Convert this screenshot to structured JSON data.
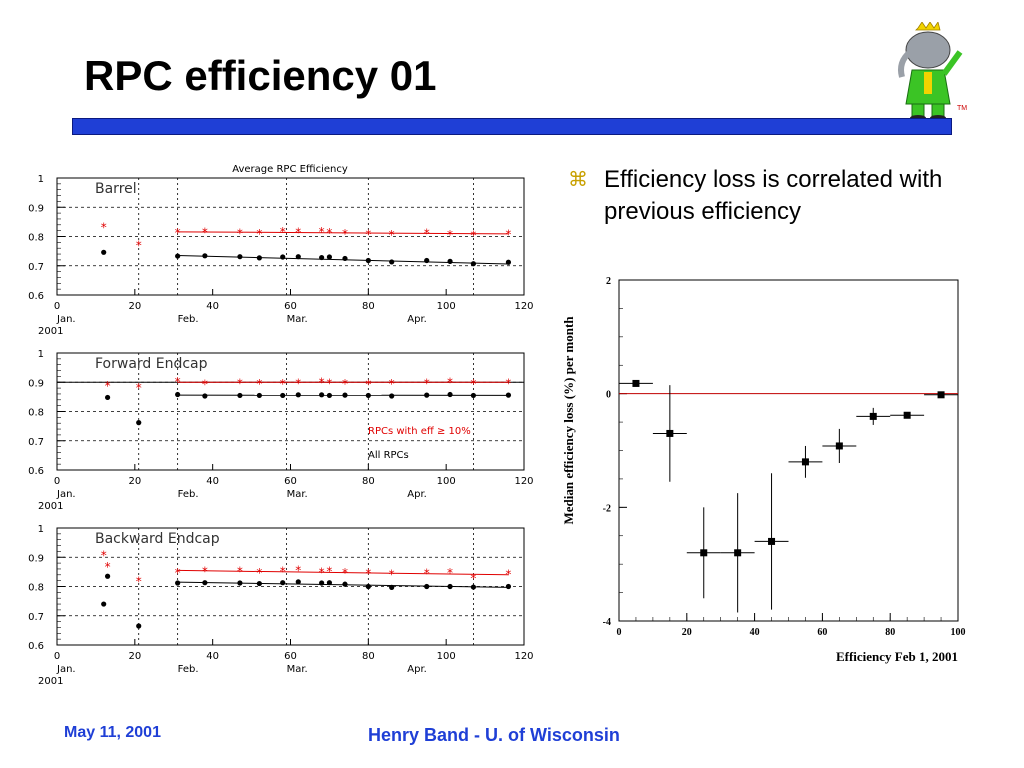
{
  "slide": {
    "title": "RPC efficiency 01",
    "bullet_symbol": "⌘",
    "bullet_text": "Efficiency loss is correlated with previous efficiency",
    "tm": "TM",
    "footer_date": "May 11, 2001",
    "footer_author": "Henry Band -  U. of Wisconsin",
    "colors": {
      "title_bar": "#1f3fd6",
      "footer_text": "#1f3fd6",
      "red_series": "#e00000",
      "black_series": "#000000"
    }
  },
  "chart_data": [
    {
      "type": "scatter",
      "panel": "top",
      "title": "Average RPC Efficiency",
      "label": "Barrel",
      "xlim": [
        0,
        120
      ],
      "ylim": [
        0.6,
        1.0
      ],
      "xticks": [
        0,
        20,
        40,
        60,
        80,
        100,
        120
      ],
      "yticks": [
        "0.6",
        "0.7",
        "0.8",
        "0.9",
        "1"
      ],
      "month_labels": [
        {
          "x": 0,
          "text": "Jan."
        },
        {
          "x": 31,
          "text": "Feb."
        },
        {
          "x": 59,
          "text": "Mar."
        },
        {
          "x": 90,
          "text": "Apr."
        }
      ],
      "year_label": "2001",
      "dotted_month_lines": [
        21,
        31,
        59,
        80,
        107
      ],
      "series": [
        {
          "marker": "star",
          "color": "#e00000",
          "x": [
            12,
            21,
            31,
            38,
            47,
            52,
            58,
            62,
            68,
            70,
            74,
            80,
            86,
            95,
            101,
            107,
            116
          ],
          "y": [
            0.835,
            0.772,
            0.815,
            0.817,
            0.814,
            0.812,
            0.819,
            0.817,
            0.818,
            0.816,
            0.812,
            0.81,
            0.808,
            0.814,
            0.808,
            0.806,
            0.81
          ],
          "fit": [
            [
              31,
              0.816
            ],
            [
              116,
              0.809
            ]
          ]
        },
        {
          "marker": "dot",
          "color": "#000000",
          "x": [
            12,
            31,
            38,
            47,
            52,
            58,
            62,
            68,
            70,
            74,
            80,
            86,
            95,
            101,
            107,
            116
          ],
          "y": [
            0.746,
            0.733,
            0.734,
            0.731,
            0.727,
            0.73,
            0.731,
            0.728,
            0.73,
            0.725,
            0.718,
            0.713,
            0.718,
            0.715,
            0.707,
            0.712
          ],
          "fit": [
            [
              31,
              0.735
            ],
            [
              116,
              0.706
            ]
          ]
        }
      ]
    },
    {
      "type": "scatter",
      "panel": "middle",
      "label": "Forward Endcap",
      "xlim": [
        0,
        120
      ],
      "ylim": [
        0.6,
        1.0
      ],
      "xticks": [
        0,
        20,
        40,
        60,
        80,
        100,
        120
      ],
      "yticks": [
        "0.6",
        "0.7",
        "0.8",
        "0.9",
        "1"
      ],
      "month_labels": [
        {
          "x": 0,
          "text": "Jan."
        },
        {
          "x": 31,
          "text": "Feb."
        },
        {
          "x": 59,
          "text": "Mar."
        },
        {
          "x": 90,
          "text": "Apr."
        }
      ],
      "year_label": "2001",
      "dotted_month_lines": [
        21,
        31,
        59,
        80,
        107
      ],
      "reference_line_y": 0.9,
      "legend_red": "RPCs with eff ≥ 10%",
      "legend_black": "All RPCs",
      "series": [
        {
          "marker": "star",
          "color": "#e00000",
          "x": [
            13,
            21,
            31,
            38,
            47,
            52,
            58,
            62,
            68,
            70,
            74,
            80,
            86,
            95,
            101,
            107,
            116
          ],
          "y": [
            0.89,
            0.884,
            0.905,
            0.896,
            0.9,
            0.898,
            0.898,
            0.9,
            0.902,
            0.9,
            0.898,
            0.895,
            0.898,
            0.9,
            0.902,
            0.898,
            0.9
          ],
          "fit": [
            [
              31,
              0.9
            ],
            [
              116,
              0.9
            ]
          ]
        },
        {
          "marker": "dot",
          "color": "#000000",
          "x": [
            13,
            21,
            31,
            38,
            47,
            52,
            58,
            62,
            68,
            70,
            74,
            80,
            86,
            95,
            101,
            107,
            116
          ],
          "y": [
            0.848,
            0.762,
            0.858,
            0.853,
            0.855,
            0.855,
            0.855,
            0.857,
            0.857,
            0.855,
            0.856,
            0.855,
            0.853,
            0.856,
            0.858,
            0.855,
            0.856
          ],
          "fit": [
            [
              31,
              0.856
            ],
            [
              116,
              0.855
            ]
          ]
        }
      ]
    },
    {
      "type": "scatter",
      "panel": "bottom",
      "label": "Backward Endcap",
      "xlim": [
        0,
        120
      ],
      "ylim": [
        0.6,
        1.0
      ],
      "xticks": [
        0,
        20,
        40,
        60,
        80,
        100,
        120
      ],
      "yticks": [
        "0.6",
        "0.7",
        "0.8",
        "0.9",
        "1"
      ],
      "month_labels": [
        {
          "x": 0,
          "text": "Jan."
        },
        {
          "x": 31,
          "text": "Feb."
        },
        {
          "x": 59,
          "text": "Mar."
        },
        {
          "x": 90,
          "text": "Apr."
        }
      ],
      "year_label": "2001",
      "dotted_month_lines": [
        21,
        31,
        59,
        80,
        107
      ],
      "series": [
        {
          "marker": "star",
          "color": "#e00000",
          "x": [
            12,
            13,
            21,
            31,
            38,
            47,
            52,
            58,
            62,
            68,
            70,
            74,
            80,
            86,
            95,
            101,
            107,
            116
          ],
          "y": [
            0.91,
            0.87,
            0.82,
            0.85,
            0.855,
            0.855,
            0.85,
            0.855,
            0.858,
            0.852,
            0.855,
            0.85,
            0.848,
            0.845,
            0.848,
            0.85,
            0.83,
            0.845
          ],
          "fit": [
            [
              31,
              0.855
            ],
            [
              116,
              0.84
            ]
          ]
        },
        {
          "marker": "dot",
          "color": "#000000",
          "x": [
            12,
            13,
            21,
            31,
            38,
            47,
            52,
            58,
            62,
            68,
            70,
            74,
            80,
            86,
            95,
            101,
            107,
            116
          ],
          "y": [
            0.74,
            0.835,
            0.665,
            0.812,
            0.813,
            0.812,
            0.81,
            0.813,
            0.816,
            0.812,
            0.813,
            0.808,
            0.8,
            0.797,
            0.8,
            0.8,
            0.798,
            0.8
          ],
          "fit": [
            [
              31,
              0.815
            ],
            [
              116,
              0.797
            ]
          ]
        }
      ]
    },
    {
      "type": "scatter",
      "panel": "right",
      "xlabel": "Efficiency Feb 1, 2001",
      "ylabel": "Median efficiency loss (%) per month",
      "xlim": [
        0,
        100
      ],
      "ylim": [
        -4,
        2
      ],
      "xticks": [
        0,
        20,
        40,
        60,
        80,
        100
      ],
      "yticks": [
        -4,
        -2,
        0,
        2
      ],
      "reference_line_y": 0,
      "points": [
        {
          "x": 5,
          "y": 0.18,
          "xerr": 5,
          "yerr_low": 0.0,
          "yerr_high": 0.0
        },
        {
          "x": 15,
          "y": -0.7,
          "xerr": 5,
          "yerr_low": 0.85,
          "yerr_high": 0.85
        },
        {
          "x": 25,
          "y": -2.8,
          "xerr": 5,
          "yerr_low": 0.8,
          "yerr_high": 0.8
        },
        {
          "x": 35,
          "y": -2.8,
          "xerr": 5,
          "yerr_low": 1.05,
          "yerr_high": 1.05
        },
        {
          "x": 45,
          "y": -2.6,
          "xerr": 5,
          "yerr_low": 1.2,
          "yerr_high": 1.2
        },
        {
          "x": 55,
          "y": -1.2,
          "xerr": 5,
          "yerr_low": 0.28,
          "yerr_high": 0.28
        },
        {
          "x": 65,
          "y": -0.92,
          "xerr": 5,
          "yerr_low": 0.3,
          "yerr_high": 0.3
        },
        {
          "x": 75,
          "y": -0.4,
          "xerr": 5,
          "yerr_low": 0.15,
          "yerr_high": 0.15
        },
        {
          "x": 85,
          "y": -0.38,
          "xerr": 5,
          "yerr_low": 0.0,
          "yerr_high": 0.0
        },
        {
          "x": 95,
          "y": -0.02,
          "xerr": 5,
          "yerr_low": 0.0,
          "yerr_high": 0.0
        }
      ]
    }
  ]
}
